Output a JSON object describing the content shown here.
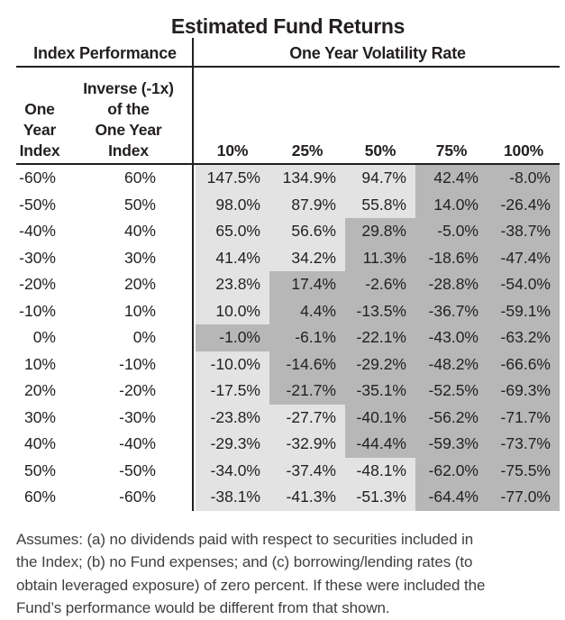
{
  "title": "Estimated Fund Returns",
  "table": {
    "left_section_header": "Index Performance",
    "right_section_header": "One Year Volatility Rate",
    "col1_header": "One\nYear\nIndex",
    "col2_header": "Inverse (-1x)\nof the\nOne Year\nIndex",
    "volatility_headers": [
      "10%",
      "25%",
      "50%",
      "75%",
      "100%"
    ],
    "rows": [
      {
        "index": "-60%",
        "inverse": "60%",
        "values": [
          "147.5%",
          "134.9%",
          "94.7%",
          "42.4%",
          "-8.0%"
        ],
        "shading": [
          "light",
          "light",
          "light",
          "dark",
          "dark"
        ]
      },
      {
        "index": "-50%",
        "inverse": "50%",
        "values": [
          "98.0%",
          "87.9%",
          "55.8%",
          "14.0%",
          "-26.4%"
        ],
        "shading": [
          "light",
          "light",
          "light",
          "dark",
          "dark"
        ]
      },
      {
        "index": "-40%",
        "inverse": "40%",
        "values": [
          "65.0%",
          "56.6%",
          "29.8%",
          "-5.0%",
          "-38.7%"
        ],
        "shading": [
          "light",
          "light",
          "dark",
          "dark",
          "dark"
        ]
      },
      {
        "index": "-30%",
        "inverse": "30%",
        "values": [
          "41.4%",
          "34.2%",
          "11.3%",
          "-18.6%",
          "-47.4%"
        ],
        "shading": [
          "light",
          "light",
          "dark",
          "dark",
          "dark"
        ]
      },
      {
        "index": "-20%",
        "inverse": "20%",
        "values": [
          "23.8%",
          "17.4%",
          "-2.6%",
          "-28.8%",
          "-54.0%"
        ],
        "shading": [
          "light",
          "dark",
          "dark",
          "dark",
          "dark"
        ]
      },
      {
        "index": "-10%",
        "inverse": "10%",
        "values": [
          "10.0%",
          "4.4%",
          "-13.5%",
          "-36.7%",
          "-59.1%"
        ],
        "shading": [
          "light",
          "dark",
          "dark",
          "dark",
          "dark"
        ]
      },
      {
        "index": "0%",
        "inverse": "0%",
        "values": [
          "-1.0%",
          "-6.1%",
          "-22.1%",
          "-43.0%",
          "-63.2%"
        ],
        "shading": [
          "dark",
          "dark",
          "dark",
          "dark",
          "dark"
        ]
      },
      {
        "index": "10%",
        "inverse": "-10%",
        "values": [
          "-10.0%",
          "-14.6%",
          "-29.2%",
          "-48.2%",
          "-66.6%"
        ],
        "shading": [
          "light",
          "dark",
          "dark",
          "dark",
          "dark"
        ]
      },
      {
        "index": "20%",
        "inverse": "-20%",
        "values": [
          "-17.5%",
          "-21.7%",
          "-35.1%",
          "-52.5%",
          "-69.3%"
        ],
        "shading": [
          "light",
          "dark",
          "dark",
          "dark",
          "dark"
        ]
      },
      {
        "index": "30%",
        "inverse": "-30%",
        "values": [
          "-23.8%",
          "-27.7%",
          "-40.1%",
          "-56.2%",
          "-71.7%"
        ],
        "shading": [
          "light",
          "light",
          "dark",
          "dark",
          "dark"
        ]
      },
      {
        "index": "40%",
        "inverse": "-40%",
        "values": [
          "-29.3%",
          "-32.9%",
          "-44.4%",
          "-59.3%",
          "-73.7%"
        ],
        "shading": [
          "light",
          "light",
          "dark",
          "dark",
          "dark"
        ]
      },
      {
        "index": "50%",
        "inverse": "-50%",
        "values": [
          "-34.0%",
          "-37.4%",
          "-48.1%",
          "-62.0%",
          "-75.5%"
        ],
        "shading": [
          "light",
          "light",
          "light",
          "dark",
          "dark"
        ]
      },
      {
        "index": "60%",
        "inverse": "-60%",
        "values": [
          "-38.1%",
          "-41.3%",
          "-51.3%",
          "-64.4%",
          "-77.0%"
        ],
        "shading": [
          "light",
          "light",
          "light",
          "dark",
          "dark"
        ]
      }
    ]
  },
  "footnote": "Assumes: (a) no dividends paid with respect to securities included in\nthe Index; (b) no Fund expenses; and (c) borrowing/lending rates (to\nobtain leveraged exposure) of zero percent. If these were included the\nFund’s performance would be different from that shown.",
  "colors": {
    "light_cell": "#e3e3e3",
    "dark_cell": "#b7b7b7",
    "ink": "#231f20",
    "footnote_text": "#404040"
  }
}
